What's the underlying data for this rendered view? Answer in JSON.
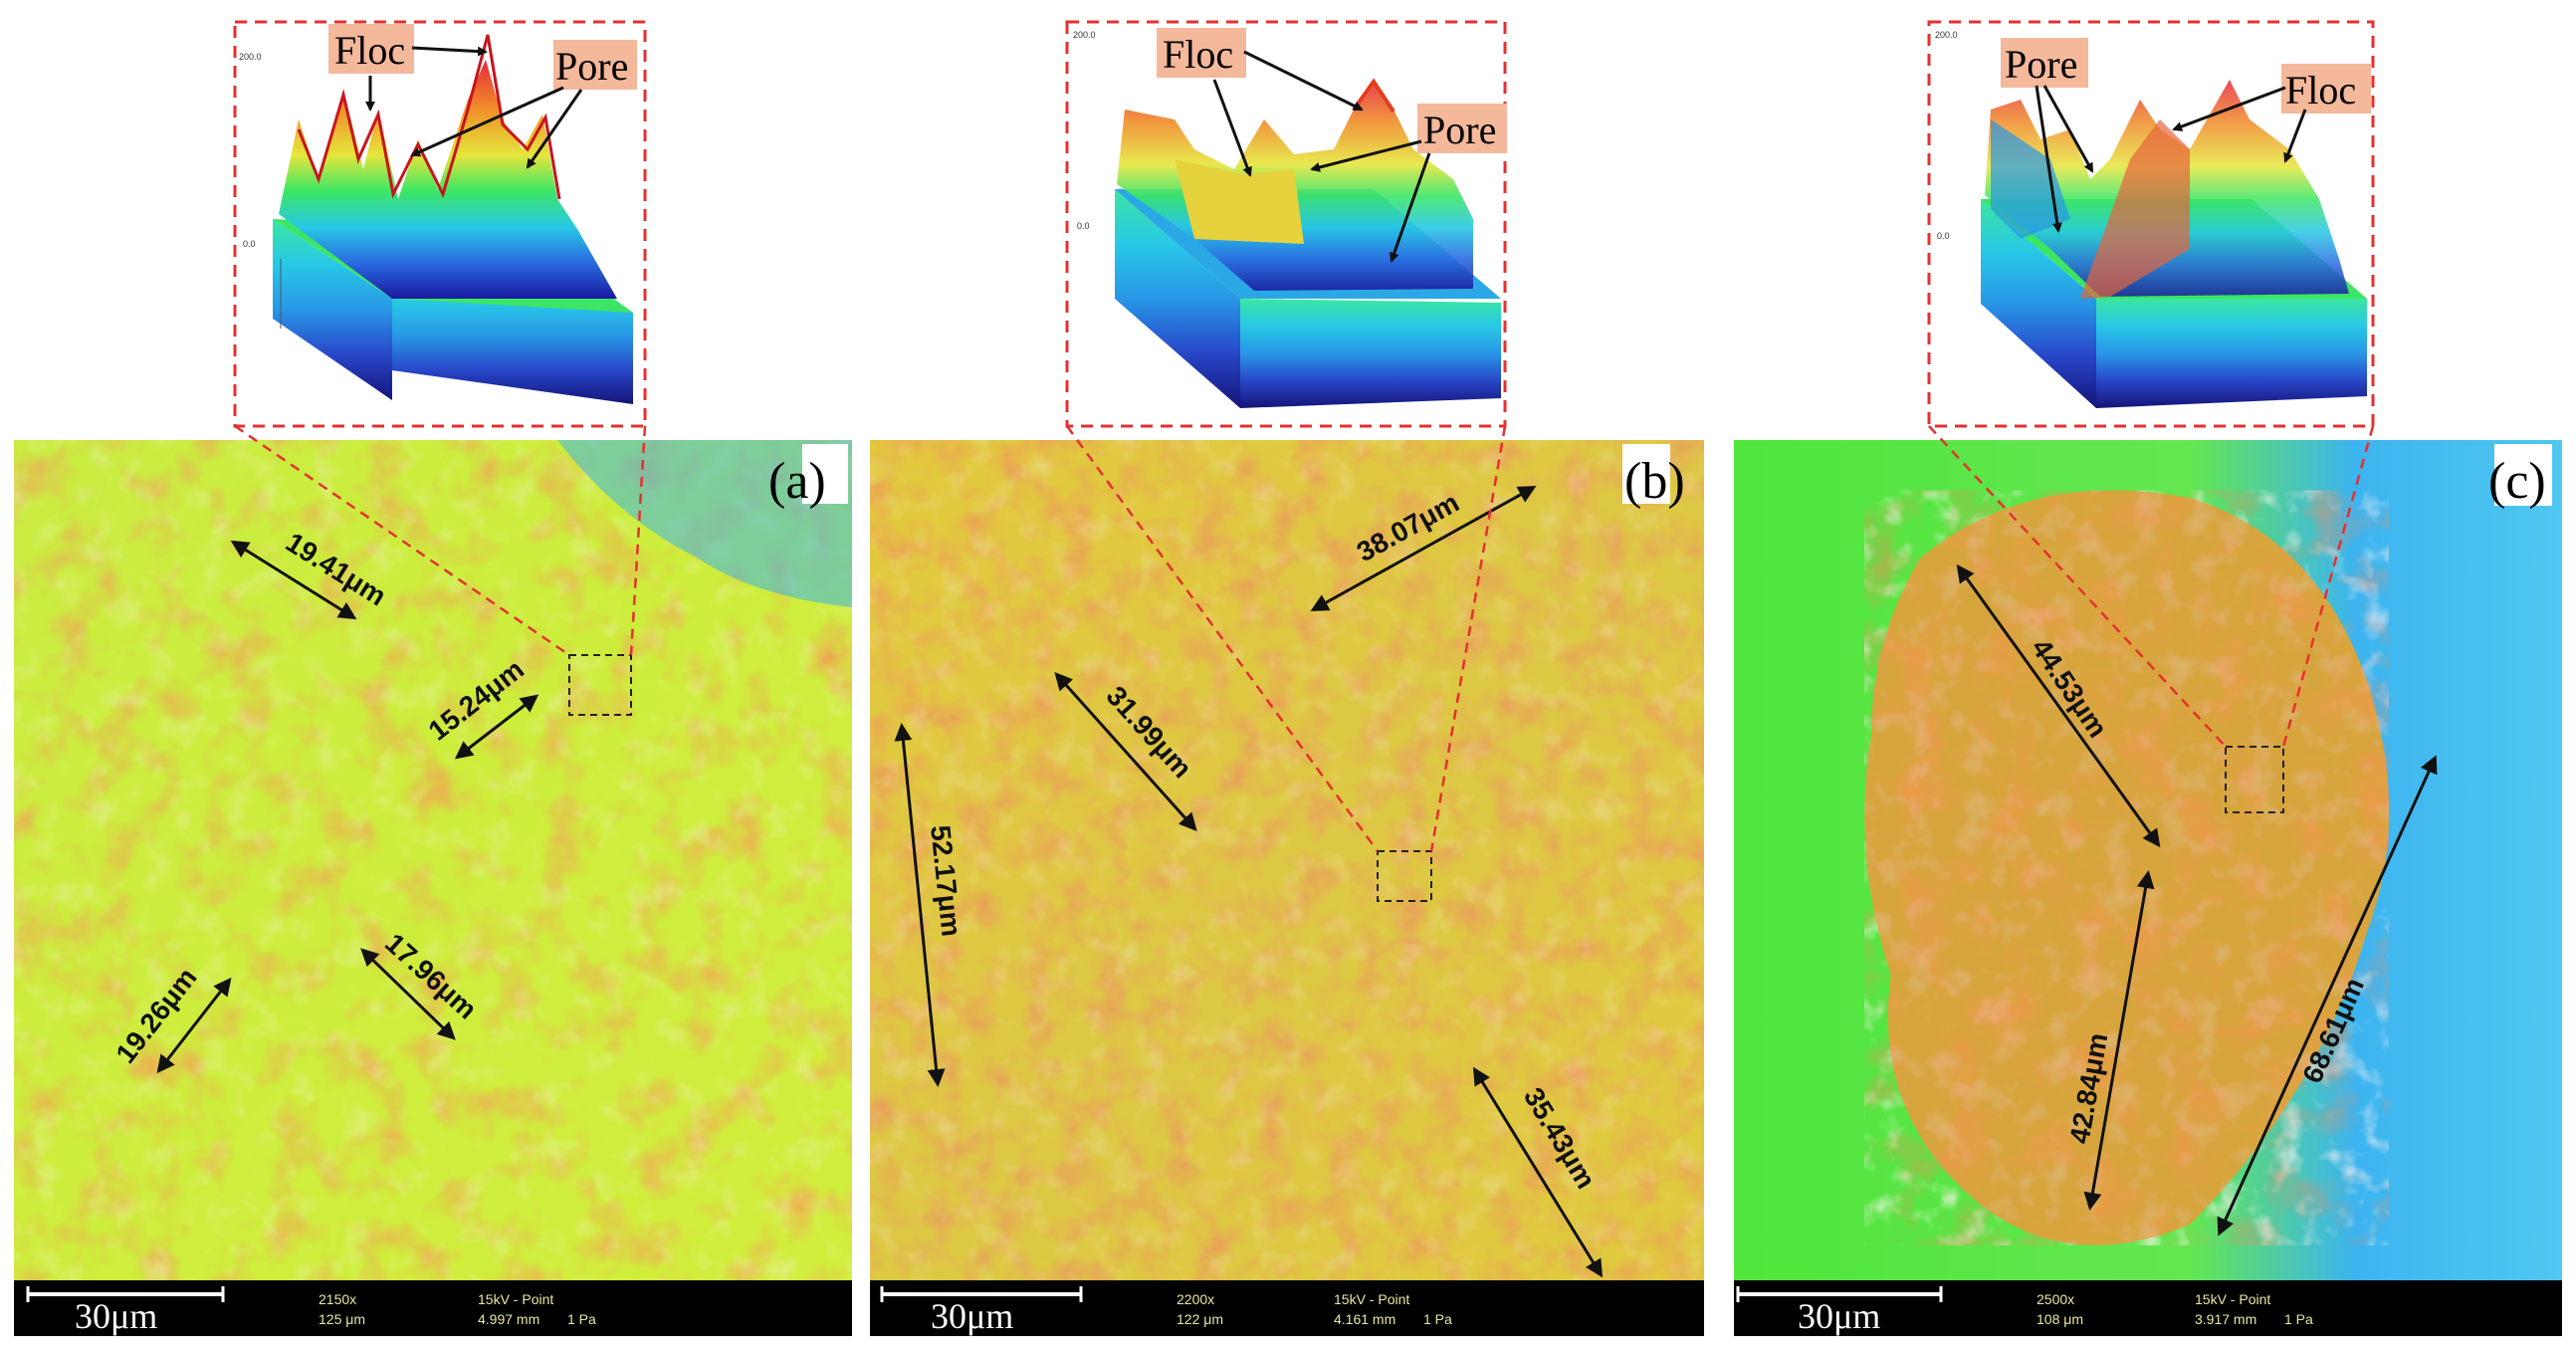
{
  "panels": [
    {
      "label": "(a)",
      "scale": "30μm",
      "magnification": "2150x",
      "field": "125 μm",
      "voltage": "15kV - Point",
      "wd": "4.997 mm",
      "pressure": "1 Pa",
      "callouts": [
        "Floc",
        "Pore"
      ],
      "measurements": [
        "19.41μm",
        "15.24μm",
        "17.96μm",
        "19.26μm"
      ]
    },
    {
      "label": "(b)",
      "scale": "30μm",
      "magnification": "2200x",
      "field": "122 μm",
      "voltage": "15kV - Point",
      "wd": "4.161 mm",
      "pressure": "1 Pa",
      "callouts": [
        "Floc",
        "Pore"
      ],
      "measurements": [
        "38.07μm",
        "31.99μm",
        "52.17μm",
        "35.43μm"
      ]
    },
    {
      "label": "(c)",
      "scale": "30μm",
      "magnification": "2500x",
      "field": "108 μm",
      "voltage": "15kV - Point",
      "wd": "3.917 mm",
      "pressure": "1 Pa",
      "callouts": [
        "Pore",
        "Floc"
      ],
      "measurements": [
        "44.53μm",
        "42.84μm",
        "68.61μm"
      ]
    }
  ],
  "colors": {
    "callout_fill": "#f4b89a",
    "dash": "#e53030",
    "surface_green": "#3ce63c",
    "surface_yellow": "#e6e63c",
    "surface_red": "#e63c28",
    "surface_blue": "#3cb4f0"
  }
}
